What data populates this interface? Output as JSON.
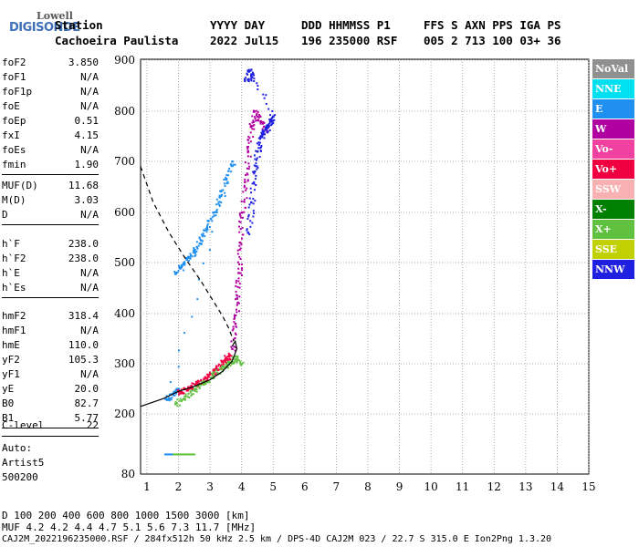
{
  "logo": {
    "line1": "Lowell",
    "line2": "DIGISONDE"
  },
  "header": {
    "labels": [
      "Station",
      "YYYY DAY",
      "DDD HHMMSS P1",
      "FFS S AXN PPS IGA PS"
    ],
    "values": [
      "Cachoeira Paulista",
      "2022 Jul15",
      "196 235000 RSF",
      "005 2 713 100 03+ 36"
    ]
  },
  "params1": [
    {
      "label": "foF2",
      "value": "3.850"
    },
    {
      "label": "foF1",
      "value": "N/A"
    },
    {
      "label": "foF1p",
      "value": "N/A"
    },
    {
      "label": "foE",
      "value": "N/A"
    },
    {
      "label": "foEp",
      "value": "0.51"
    },
    {
      "label": "fxI",
      "value": "4.15"
    },
    {
      "label": "foEs",
      "value": "N/A"
    },
    {
      "label": "fmin",
      "value": "1.90"
    }
  ],
  "params2": [
    {
      "label": "MUF(D)",
      "value": "11.68"
    },
    {
      "label": "M(D)",
      "value": "3.03"
    },
    {
      "label": "D",
      "value": "N/A"
    }
  ],
  "params3": [
    {
      "label": "h`F",
      "value": "238.0"
    },
    {
      "label": "h`F2",
      "value": "238.0"
    },
    {
      "label": "h`E",
      "value": "N/A"
    },
    {
      "label": "h`Es",
      "value": "N/A"
    }
  ],
  "params4": [
    {
      "label": "hmF2",
      "value": "318.4"
    },
    {
      "label": "hmF1",
      "value": "N/A"
    },
    {
      "label": "hmE",
      "value": "110.0"
    },
    {
      "label": "yF2",
      "value": "105.3"
    },
    {
      "label": "yF1",
      "value": "N/A"
    },
    {
      "label": "yE",
      "value": "20.0"
    },
    {
      "label": "B0",
      "value": "82.7"
    },
    {
      "label": "B1",
      "value": "5.77"
    }
  ],
  "params5": [
    {
      "label": "C-level",
      "value": "22"
    }
  ],
  "auto": {
    "line1": "Auto:",
    "line2": "Artist5",
    "line3": "500200"
  },
  "legend": [
    {
      "label": "NoVal",
      "color": "#909090"
    },
    {
      "label": "NNE",
      "color": "#00e0f0"
    },
    {
      "label": "E",
      "color": "#2090f0"
    },
    {
      "label": "W",
      "color": "#b000a0"
    },
    {
      "label": "Vo-",
      "color": "#f040a0"
    },
    {
      "label": "Vo+",
      "color": "#f00040"
    },
    {
      "label": "SSW",
      "color": "#f8b0b0"
    },
    {
      "label": "X-",
      "color": "#008000"
    },
    {
      "label": "X+",
      "color": "#60c040"
    },
    {
      "label": "SSE",
      "color": "#c0d000"
    },
    {
      "label": "NNW",
      "color": "#2020e0"
    }
  ],
  "footer": {
    "d_row": "D     100  200  400  600  800 1000 1500 3000 [km]",
    "muf_row": "MUF   4.2  4.2  4.4  4.7  5.1  5.6  7.3 11.7 [MHz]",
    "info": "CAJ2M_2022196235000.RSF / 284fx512h 50 kHz 2.5 km / DPS-4D CAJ2M 023 / 22.7 S 315.0 E Ion2Png 1.3.20"
  },
  "chart_data": {
    "type": "scatter",
    "xlim": [
      0.8,
      15
    ],
    "ylim": [
      80,
      900
    ],
    "xticks": [
      "1",
      "2",
      "3",
      "4",
      "5",
      "6",
      "7",
      "8",
      "9",
      "10",
      "11",
      "12",
      "13",
      "14",
      "15"
    ],
    "yticks": [
      "80",
      "200",
      "300",
      "400",
      "500",
      "600",
      "700",
      "800",
      "900"
    ],
    "ytick_values": [
      80,
      200,
      300,
      400,
      500,
      600,
      700,
      800,
      900
    ],
    "series": [
      {
        "name": "E",
        "color": "#2090f0",
        "points": [
          [
            1.9,
            480
          ],
          [
            2.1,
            495
          ],
          [
            2.3,
            510
          ],
          [
            2.5,
            525
          ],
          [
            2.7,
            545
          ],
          [
            2.9,
            570
          ],
          [
            3.1,
            600
          ],
          [
            3.3,
            630
          ],
          [
            3.5,
            665
          ],
          [
            3.7,
            700
          ],
          [
            1.6,
            230
          ],
          [
            1.8,
            240
          ],
          [
            2.0,
            250
          ]
        ]
      },
      {
        "name": "W",
        "color": "#b000a0",
        "points": [
          [
            3.7,
            330
          ],
          [
            3.8,
            380
          ],
          [
            3.85,
            430
          ],
          [
            3.9,
            480
          ],
          [
            3.95,
            540
          ],
          [
            4.0,
            600
          ],
          [
            4.1,
            660
          ],
          [
            4.2,
            720
          ],
          [
            4.3,
            770
          ],
          [
            4.4,
            800
          ],
          [
            4.6,
            780
          ],
          [
            4.8,
            760
          ]
        ]
      },
      {
        "name": "Vo+",
        "color": "#f00040",
        "points": [
          [
            2.0,
            245
          ],
          [
            2.2,
            250
          ],
          [
            2.4,
            255
          ],
          [
            2.6,
            262
          ],
          [
            2.8,
            270
          ],
          [
            3.0,
            280
          ],
          [
            3.2,
            292
          ],
          [
            3.4,
            305
          ],
          [
            3.5,
            312
          ],
          [
            3.6,
            318
          ]
        ]
      },
      {
        "name": "X+",
        "color": "#60c040",
        "points": [
          [
            1.9,
            220
          ],
          [
            2.2,
            235
          ],
          [
            2.5,
            250
          ],
          [
            2.8,
            262
          ],
          [
            3.1,
            278
          ],
          [
            3.4,
            295
          ],
          [
            3.6,
            302
          ],
          [
            3.8,
            315
          ],
          [
            4.0,
            300
          ]
        ]
      },
      {
        "name": "NNW",
        "color": "#2020e0",
        "points": [
          [
            4.2,
            560
          ],
          [
            4.3,
            620
          ],
          [
            4.4,
            680
          ],
          [
            4.5,
            720
          ],
          [
            4.6,
            750
          ],
          [
            4.7,
            760
          ],
          [
            4.8,
            770
          ],
          [
            4.9,
            780
          ],
          [
            5.0,
            790
          ],
          [
            4.2,
            880
          ],
          [
            4.3,
            870
          ],
          [
            4.1,
            860
          ]
        ]
      }
    ]
  }
}
